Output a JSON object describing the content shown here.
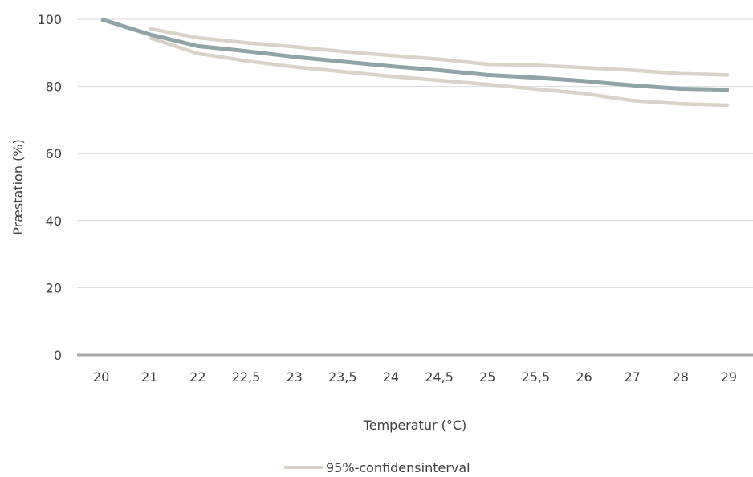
{
  "chart_data": {
    "type": "line",
    "xlabel": "Temperatur (°C)",
    "ylabel": "Præstation (%)",
    "categories": [
      "20",
      "21",
      "22",
      "22,5",
      "23",
      "23,5",
      "24",
      "24,5",
      "25",
      "25,5",
      "26",
      "27",
      "28",
      "29"
    ],
    "y_ticks": [
      "0",
      "20",
      "40",
      "60",
      "80",
      "100"
    ],
    "ylim": [
      0,
      100
    ],
    "grid": "horizontal",
    "legend_position": "bottom",
    "series": [
      {
        "role": "estimate",
        "color": "#8fa4a8",
        "values": [
          100,
          95.5,
          92,
          90.5,
          88.8,
          87.4,
          86,
          84.8,
          83.4,
          82.6,
          81.6,
          80.3,
          79.3,
          79
        ]
      },
      {
        "role": "upper",
        "name": "95%-confidensinterval",
        "color": "#d8d2c7",
        "values": [
          null,
          97.2,
          94.5,
          93,
          91.8,
          90.4,
          89.2,
          88.1,
          86.6,
          86.3,
          85.6,
          84.8,
          83.8,
          83.4
        ]
      },
      {
        "role": "lower",
        "color": "#d8d2c7",
        "values": [
          null,
          94.5,
          89.8,
          87.6,
          85.8,
          84.4,
          83,
          81.8,
          80.6,
          79.2,
          77.9,
          75.8,
          74.8,
          74.4
        ]
      }
    ]
  }
}
